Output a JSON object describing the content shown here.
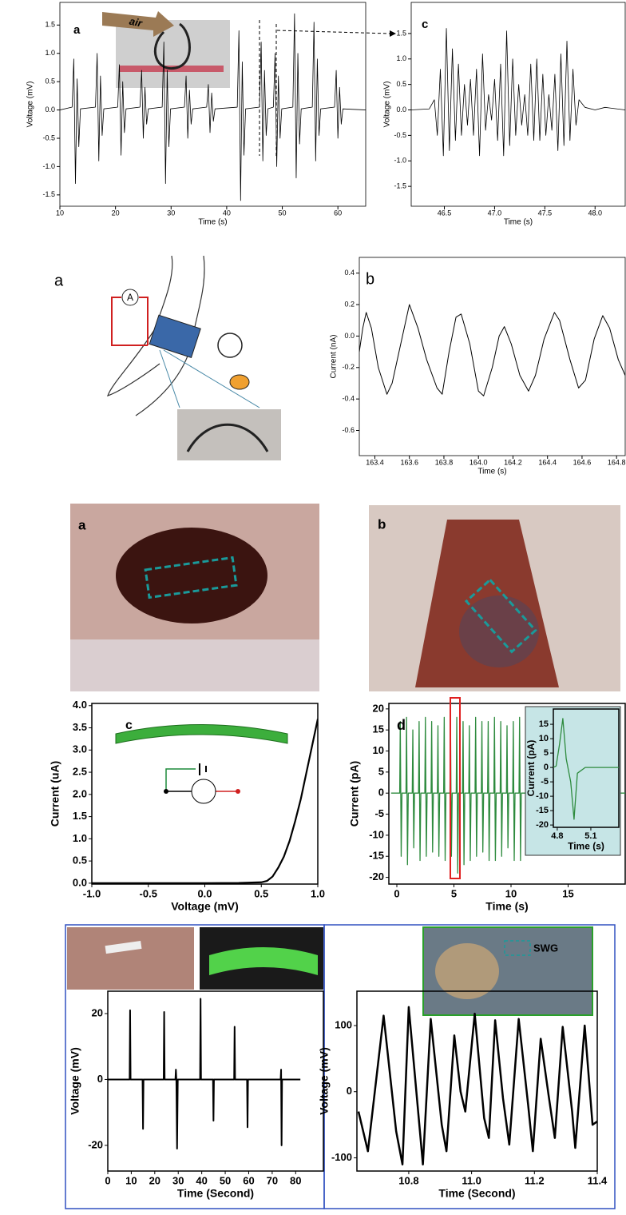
{
  "figure": {
    "panel_labels": [
      "a",
      "a",
      "b"
    ],
    "annotations": [
      "air",
      "A",
      "SWG"
    ]
  },
  "chart_data": [
    {
      "type": "line",
      "label": "a",
      "xlabel": "Time (s)",
      "ylabel": "Voltage (mV)",
      "color": "#000000",
      "xlim": [
        10,
        65
      ],
      "ylim": [
        -1.7,
        1.9
      ],
      "xticks": [
        10,
        20,
        30,
        40,
        50,
        60
      ],
      "yticks": [
        -1.5,
        {
          "value": -1,
          "label": "-1.0"
        },
        -0.5,
        {
          "value": 0,
          "label": "0.0"
        },
        0.5,
        {
          "value": 1,
          "label": "1.0"
        },
        1.5
      ],
      "x": [
        10,
        12.2,
        12.5,
        12.8,
        13.1,
        13.4,
        13.7,
        16.4,
        16.7,
        17,
        17.3,
        17.6,
        17.9,
        20.4,
        20.7,
        21,
        21.3,
        21.6,
        21.9,
        24.4,
        24.7,
        25,
        25.3,
        25.6,
        25.9,
        28.4,
        28.7,
        29,
        29.3,
        29.6,
        29.9,
        32.4,
        32.7,
        33,
        33.3,
        33.6,
        33.9,
        36.4,
        36.7,
        37,
        37.3,
        37.6,
        37.9,
        41.9,
        42.2,
        42.5,
        42.8,
        43.1,
        43.4,
        45.9,
        46.2,
        46.5,
        46.8,
        47.1,
        47.4,
        48.4,
        48.7,
        49,
        49.3,
        49.6,
        49.9,
        51.9,
        52.2,
        52.5,
        52.8,
        53.1,
        53.4,
        55.4,
        55.7,
        56,
        56.3,
        56.6,
        56.9,
        59.4,
        59.7,
        60,
        60.3,
        60.6,
        60.9,
        65
      ],
      "values": [
        0,
        0.05,
        0.9,
        -1.3,
        0.55,
        -0.65,
        0.02,
        0.05,
        1.0,
        -0.9,
        0.6,
        -0.45,
        0.02,
        0.05,
        0.8,
        -0.8,
        0.5,
        -0.4,
        0.02,
        0.05,
        0.7,
        -0.5,
        0.4,
        -0.25,
        0.02,
        0.05,
        1.2,
        -1.3,
        0.7,
        -0.65,
        0.02,
        0.05,
        0.6,
        -0.5,
        0.35,
        -0.25,
        0.02,
        0.05,
        0.45,
        -0.4,
        0.3,
        -0.2,
        0.02,
        0.05,
        1.4,
        -1.6,
        0.85,
        -0.8,
        0.02,
        0.05,
        1.2,
        -0.9,
        0.7,
        -0.45,
        0.02,
        0.05,
        1.0,
        -1.0,
        0.6,
        -0.5,
        0.02,
        0.05,
        1.7,
        -1.2,
        1.0,
        -0.6,
        0.02,
        0.05,
        1.55,
        -0.9,
        0.9,
        -0.45,
        0.02,
        0.05,
        0.7,
        -0.5,
        0.4,
        -0.25,
        0.02,
        0
      ]
    },
    {
      "type": "line",
      "label": "c",
      "xlabel": "Time (s)",
      "ylabel": "Voltage (mV)",
      "color": "#000000",
      "xlim": [
        46.17,
        48.3
      ],
      "ylim": [
        -1.89,
        2.11
      ],
      "xticks": [
        46.5,
        {
          "value": 47,
          "label": "47.0"
        },
        47.5,
        {
          "value": 48,
          "label": "48.0"
        }
      ],
      "yticks": [
        -1.5,
        {
          "value": -1,
          "label": "-1.0"
        },
        -0.5,
        {
          "value": 0,
          "label": "0.0"
        },
        0.5,
        {
          "value": 1,
          "label": "1.0"
        },
        1.5
      ],
      "x": [
        46.17,
        46.35,
        46.4,
        46.43,
        46.46,
        46.49,
        46.52,
        46.55,
        46.58,
        46.61,
        46.64,
        46.67,
        46.7,
        46.73,
        46.76,
        46.79,
        46.82,
        46.85,
        46.88,
        46.91,
        46.94,
        46.97,
        47.0,
        47.03,
        47.06,
        47.09,
        47.12,
        47.15,
        47.18,
        47.21,
        47.24,
        47.27,
        47.3,
        47.33,
        47.36,
        47.39,
        47.42,
        47.45,
        47.48,
        47.51,
        47.54,
        47.57,
        47.6,
        47.63,
        47.66,
        47.69,
        47.72,
        47.75,
        47.78,
        47.81,
        47.84,
        47.9,
        48.0,
        48.1,
        48.3
      ],
      "values": [
        0,
        0.02,
        0.2,
        -0.5,
        0.8,
        -0.9,
        1.6,
        -0.8,
        1.2,
        -0.6,
        0.9,
        -0.5,
        0.5,
        -0.3,
        0.6,
        -0.5,
        0.8,
        -0.9,
        1.1,
        -0.4,
        0.3,
        -0.2,
        0.6,
        -0.6,
        0.9,
        -0.9,
        1.55,
        -0.7,
        1.0,
        -0.5,
        0.5,
        -0.3,
        0.3,
        -0.5,
        0.9,
        -0.6,
        1.0,
        -0.6,
        0.7,
        -0.5,
        0.3,
        -0.4,
        0.7,
        -0.8,
        1.1,
        -0.7,
        1.35,
        -0.6,
        0.8,
        -0.3,
        0.2,
        0.05,
        0,
        0.05,
        0
      ]
    },
    {
      "type": "line",
      "label": "b",
      "xlabel": "Time (s)",
      "ylabel": "Current (nA)",
      "color": "#000000",
      "xlim": [
        163.31,
        164.85
      ],
      "ylim": [
        -0.76,
        0.5
      ],
      "xticks": [
        163.4,
        163.6,
        163.8,
        {
          "value": 164,
          "label": "164.0"
        },
        164.2,
        164.4,
        164.6,
        164.8
      ],
      "yticks": [
        -0.6,
        -0.4,
        -0.2,
        {
          "value": 0,
          "label": "0.0"
        },
        0.2,
        0.4
      ],
      "x": [
        163.31,
        163.33,
        163.35,
        163.38,
        163.42,
        163.47,
        163.5,
        163.55,
        163.6,
        163.65,
        163.7,
        163.76,
        163.79,
        163.83,
        163.87,
        163.9,
        163.95,
        164.0,
        164.03,
        164.08,
        164.12,
        164.15,
        164.19,
        164.24,
        164.29,
        164.33,
        164.38,
        164.44,
        164.47,
        164.53,
        164.58,
        164.62,
        164.67,
        164.72,
        164.76,
        164.81,
        164.85
      ],
      "values": [
        -0.1,
        0.05,
        0.15,
        0.05,
        -0.2,
        -0.37,
        -0.3,
        -0.05,
        0.2,
        0.05,
        -0.15,
        -0.33,
        -0.37,
        -0.1,
        0.12,
        0.14,
        -0.05,
        -0.35,
        -0.38,
        -0.2,
        0.0,
        0.06,
        -0.05,
        -0.25,
        -0.35,
        -0.25,
        -0.02,
        0.15,
        0.1,
        -0.15,
        -0.33,
        -0.28,
        -0.02,
        0.13,
        0.05,
        -0.15,
        -0.25
      ]
    },
    {
      "type": "line",
      "label": "c",
      "xlabel": "Voltage (mV)",
      "ylabel": "Current (uA)",
      "color": "#000000",
      "xlim": [
        -1,
        1
      ],
      "ylim": [
        -0.02,
        4.05
      ],
      "xticks": [
        {
          "value": -1,
          "label": "-1.0"
        },
        -0.5,
        {
          "value": 0,
          "label": "0.0"
        },
        0.5,
        {
          "value": 1,
          "label": "1.0"
        }
      ],
      "yticks": [
        {
          "value": 0,
          "label": "0.0"
        },
        0.5,
        {
          "value": 1,
          "label": "1.0"
        },
        1.5,
        {
          "value": 2,
          "label": "2.0"
        },
        2.5,
        {
          "value": 3,
          "label": "3.0"
        },
        3.5,
        {
          "value": 4,
          "label": "4.0"
        }
      ],
      "x": [
        -1,
        -0.5,
        0,
        0.3,
        0.5,
        0.55,
        0.6,
        0.65,
        0.7,
        0.75,
        0.8,
        0.85,
        0.9,
        0.95,
        1.0
      ],
      "values": [
        0,
        0,
        0,
        0.005,
        0.02,
        0.05,
        0.15,
        0.35,
        0.6,
        0.95,
        1.4,
        1.9,
        2.5,
        3.1,
        3.7
      ]
    },
    {
      "type": "line",
      "label": "d",
      "xlabel": "Time (s)",
      "ylabel": "Current (pA)",
      "color": "#2e8b3e",
      "xlim": [
        -0.7,
        20
      ],
      "ylim": [
        -21.6,
        21.3
      ],
      "xticks": [
        0,
        5,
        10,
        15
      ],
      "yticks": [
        -20,
        -15,
        -10,
        -5,
        0,
        5,
        10,
        15,
        20
      ],
      "x": [
        -0.5,
        0.25,
        0.3,
        0.38,
        0.45,
        0.8,
        0.85,
        0.93,
        1.0,
        1.35,
        1.4,
        1.48,
        1.55,
        1.9,
        1.95,
        2.03,
        2.1,
        2.45,
        2.5,
        2.58,
        2.65,
        3.0,
        3.05,
        3.13,
        3.2,
        3.55,
        3.6,
        3.68,
        3.75,
        4.1,
        4.15,
        4.23,
        4.3,
        4.65,
        4.7,
        4.78,
        4.85,
        5.2,
        5.25,
        5.33,
        5.4,
        5.75,
        5.8,
        5.88,
        5.95,
        6.3,
        6.35,
        6.43,
        6.5,
        6.85,
        6.9,
        6.98,
        7.05,
        7.4,
        7.45,
        7.53,
        7.6,
        7.95,
        8.0,
        8.08,
        8.15,
        8.5,
        8.55,
        8.63,
        8.7,
        9.05,
        9.1,
        9.18,
        9.25,
        9.6,
        9.65,
        9.73,
        9.8,
        10.15,
        10.2,
        10.28,
        10.35,
        10.7,
        10.75,
        10.83,
        10.9,
        11,
        20
      ],
      "values": [
        0,
        0,
        17,
        -15,
        0,
        0,
        18,
        -17,
        0,
        0,
        15,
        -13,
        0,
        0,
        17,
        -16,
        0,
        0,
        18,
        -15,
        0,
        0,
        17,
        -14,
        0,
        0,
        16,
        -15,
        0,
        0,
        18,
        -16,
        0,
        0,
        17,
        -15,
        0,
        0,
        18,
        -19,
        0,
        0,
        17,
        -17,
        0,
        0,
        16,
        -16,
        0,
        0,
        18,
        -15,
        0,
        0,
        17,
        -14,
        0,
        0,
        17,
        -16,
        0,
        0,
        18,
        -16,
        0,
        0,
        17,
        -15,
        0,
        0,
        16,
        -13,
        0,
        0,
        17,
        -16,
        0,
        0,
        18,
        -16,
        0,
        0,
        0
      ]
    },
    {
      "type": "line",
      "xlabel": "Time (s)",
      "ylabel": "Current (pA)",
      "color": "#2e8b3e",
      "background": "#c6e5e6",
      "xlim": [
        4.765,
        5.35
      ],
      "ylim": [
        -20.8,
        20.3
      ],
      "xticks": [
        4.8,
        5.1
      ],
      "yticks": [
        -20,
        -15,
        -10,
        -5,
        0,
        5,
        10,
        15
      ],
      "x": [
        4.765,
        4.79,
        4.82,
        4.85,
        4.88,
        4.92,
        4.95,
        4.98,
        5.05,
        5.35
      ],
      "values": [
        0,
        0.5,
        8,
        17,
        3,
        -5,
        -18,
        -2,
        0,
        0
      ]
    },
    {
      "type": "line",
      "xlabel": "Time (Second)",
      "ylabel": "Voltage (mV)",
      "color": "#000000",
      "xlim": [
        0,
        91.8
      ],
      "ylim": [
        -27.8,
        26.8
      ],
      "xticks": [
        0,
        10,
        20,
        30,
        40,
        50,
        60,
        70,
        80
      ],
      "yticks": [
        -20,
        0,
        20
      ],
      "x": [
        0,
        9.3,
        9.5,
        9.7,
        14.8,
        15,
        15.2,
        23.8,
        24,
        24.2,
        28.8,
        29,
        29.2,
        29.5,
        29.8,
        39.3,
        39.5,
        39.7,
        44.8,
        45,
        45.2,
        53.8,
        54,
        54.2,
        59.3,
        59.5,
        59.7,
        73.6,
        73.8,
        74,
        74.2,
        82
      ],
      "values": [
        0,
        0,
        21,
        0,
        0,
        -15,
        0,
        0,
        20.5,
        0,
        0,
        3,
        0,
        -21,
        0,
        0,
        24.5,
        0,
        0,
        -12.5,
        0,
        0,
        16,
        0,
        0,
        -14.5,
        0,
        0,
        3,
        -20,
        0,
        0
      ]
    },
    {
      "type": "line",
      "xlabel": "Time (Second)",
      "ylabel": "Voltage (mV)",
      "color": "#000000",
      "xlim": [
        10.635,
        11.4
      ],
      "ylim": [
        -120,
        152
      ],
      "xticks": [
        10.8,
        {
          "value": 11,
          "label": "11.0"
        },
        11.2,
        11.4
      ],
      "yticks": [
        -100,
        0,
        100
      ],
      "x": [
        10.64,
        10.67,
        10.72,
        10.76,
        10.78,
        10.8,
        10.845,
        10.87,
        10.905,
        10.92,
        10.945,
        10.965,
        10.98,
        11.01,
        11.04,
        11.055,
        11.075,
        11.1,
        11.12,
        11.15,
        11.18,
        11.195,
        11.22,
        11.245,
        11.265,
        11.29,
        11.32,
        11.33,
        11.36,
        11.385,
        11.4
      ],
      "values": [
        -30,
        -90,
        115,
        -60,
        -110,
        128,
        -110,
        110,
        -50,
        -90,
        85,
        0,
        -30,
        118,
        -40,
        -70,
        108,
        -10,
        -80,
        110,
        -20,
        -90,
        80,
        -5,
        -70,
        98,
        -30,
        -85,
        100,
        -50,
        -45
      ]
    }
  ]
}
